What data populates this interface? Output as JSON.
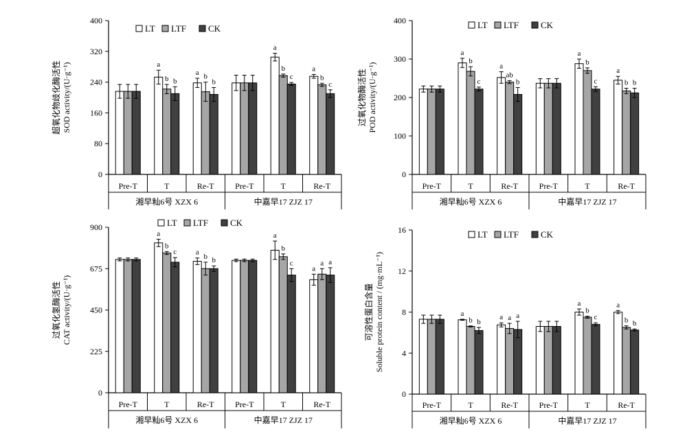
{
  "legend_labels": [
    "LT",
    "LTF",
    "CK"
  ],
  "colors": {
    "LT": "#ffffff",
    "LTF": "#a6a6a6",
    "CK": "#404040"
  },
  "chart_data": [
    {
      "type": "bar",
      "id": "sod",
      "ylabel_cn": "超氧化物歧化酶活性",
      "ylabel_en": "SOD activity/(U·g⁻¹)",
      "ylim": [
        0,
        400
      ],
      "yticks": [
        "0",
        "80",
        "160",
        "240",
        "320",
        "400"
      ],
      "categories": [
        "Pre-T",
        "T",
        "Re-T",
        "Pre-T",
        "T",
        "Re-T"
      ],
      "groups": [
        "湘早籼6号 XZX 6",
        "中嘉早17 ZJZ 17"
      ],
      "series": [
        {
          "name": "LT",
          "values": [
            216,
            253,
            238,
            238,
            305,
            255
          ],
          "errors": [
            18,
            18,
            12,
            20,
            10,
            5
          ],
          "letters": [
            "",
            "a",
            "a",
            "",
            "a",
            "a"
          ]
        },
        {
          "name": "LTF",
          "values": [
            216,
            222,
            215,
            238,
            257,
            233
          ],
          "errors": [
            18,
            12,
            25,
            20,
            4,
            4
          ],
          "letters": [
            "",
            "b",
            "b",
            "",
            "b",
            "b"
          ]
        },
        {
          "name": "CK",
          "values": [
            216,
            210,
            208,
            238,
            235,
            210
          ],
          "errors": [
            18,
            18,
            18,
            20,
            4,
            10
          ],
          "letters": [
            "",
            "b",
            "b",
            "",
            "c",
            "c"
          ]
        }
      ]
    },
    {
      "type": "bar",
      "id": "pod",
      "ylabel_cn": "过氧化物酶活性",
      "ylabel_en": "POD activity/(U·g⁻¹)",
      "ylim": [
        0,
        400
      ],
      "yticks": [
        "0",
        "100",
        "200",
        "300",
        "400"
      ],
      "categories": [
        "Pre-T",
        "T",
        "Re-T",
        "Pre-T",
        "T",
        "Re-T"
      ],
      "groups": [
        "湘早籼6号 XZX 6",
        "中嘉早17 ZJZ 17"
      ],
      "series": [
        {
          "name": "LT",
          "values": [
            222,
            290,
            252,
            237,
            288,
            245
          ],
          "errors": [
            8,
            12,
            15,
            12,
            12,
            10
          ],
          "letters": [
            "",
            "a",
            "a",
            "",
            "a",
            "a"
          ]
        },
        {
          "name": "LTF",
          "values": [
            222,
            268,
            240,
            237,
            270,
            217
          ],
          "errors": [
            8,
            12,
            4,
            12,
            7,
            7
          ],
          "letters": [
            "",
            "b",
            "ab",
            "",
            "b",
            "b"
          ]
        },
        {
          "name": "CK",
          "values": [
            222,
            222,
            208,
            237,
            222,
            212
          ],
          "errors": [
            8,
            5,
            18,
            12,
            6,
            12
          ],
          "letters": [
            "",
            "c",
            "b",
            "",
            "c",
            "b"
          ]
        }
      ]
    },
    {
      "type": "bar",
      "id": "cat",
      "ylabel_cn": "过氧化氢酶活性",
      "ylabel_en": "CAT activity/(U·g⁻¹)",
      "ylim": [
        0,
        900
      ],
      "yticks": [
        "0",
        "225",
        "450",
        "675",
        "900"
      ],
      "categories": [
        "Pre-T",
        "T",
        "Re-T",
        "Pre-T",
        "T",
        "Re-T"
      ],
      "groups": [
        "湘早籼6号 XZX 6",
        "中嘉早17 ZJZ 17"
      ],
      "series": [
        {
          "name": "LT",
          "values": [
            725,
            815,
            715,
            720,
            775,
            615
          ],
          "errors": [
            8,
            20,
            18,
            7,
            50,
            30
          ],
          "letters": [
            "",
            "a",
            "a",
            "",
            "a",
            "a"
          ]
        },
        {
          "name": "LTF",
          "values": [
            725,
            760,
            675,
            720,
            740,
            645
          ],
          "errors": [
            8,
            8,
            35,
            7,
            15,
            30
          ],
          "letters": [
            "",
            "b",
            "b",
            "",
            "b",
            "a"
          ]
        },
        {
          "name": "CK",
          "values": [
            725,
            710,
            675,
            720,
            640,
            640
          ],
          "errors": [
            8,
            25,
            15,
            7,
            35,
            40
          ],
          "letters": [
            "",
            "c",
            "b",
            "",
            "c",
            "a"
          ]
        }
      ]
    },
    {
      "type": "bar",
      "id": "protein",
      "ylabel_cn": "可溶性蛋白含量",
      "ylabel_en": "Soluble protein content / (mg·mL⁻¹)",
      "ylim": [
        0,
        16
      ],
      "yticks": [
        "0",
        "4",
        "8",
        "12",
        "16"
      ],
      "categories": [
        "Pre-T",
        "T",
        "Re-T",
        "Pre-T",
        "T",
        "Re-T"
      ],
      "groups": [
        "湘早籼6号 XZX 6",
        "中嘉早17 ZJZ 17"
      ],
      "series": [
        {
          "name": "LT",
          "values": [
            7.3,
            7.25,
            6.75,
            6.6,
            8.0,
            8.0
          ],
          "errors": [
            0.4,
            0.05,
            0.2,
            0.5,
            0.3,
            0.15
          ],
          "letters": [
            "",
            "a",
            "a",
            "",
            "a",
            "a"
          ]
        },
        {
          "name": "LTF",
          "values": [
            7.3,
            6.6,
            6.4,
            6.6,
            7.5,
            6.5
          ],
          "errors": [
            0.4,
            0.05,
            0.5,
            0.5,
            0.1,
            0.15
          ],
          "letters": [
            "",
            "b",
            "a",
            "",
            "b",
            "b"
          ]
        },
        {
          "name": "CK",
          "values": [
            7.3,
            6.2,
            6.3,
            6.6,
            6.8,
            6.25
          ],
          "errors": [
            0.4,
            0.3,
            0.8,
            0.5,
            0.15,
            0.1
          ],
          "letters": [
            "",
            "b",
            "a",
            "",
            "c",
            "b"
          ]
        }
      ]
    }
  ]
}
